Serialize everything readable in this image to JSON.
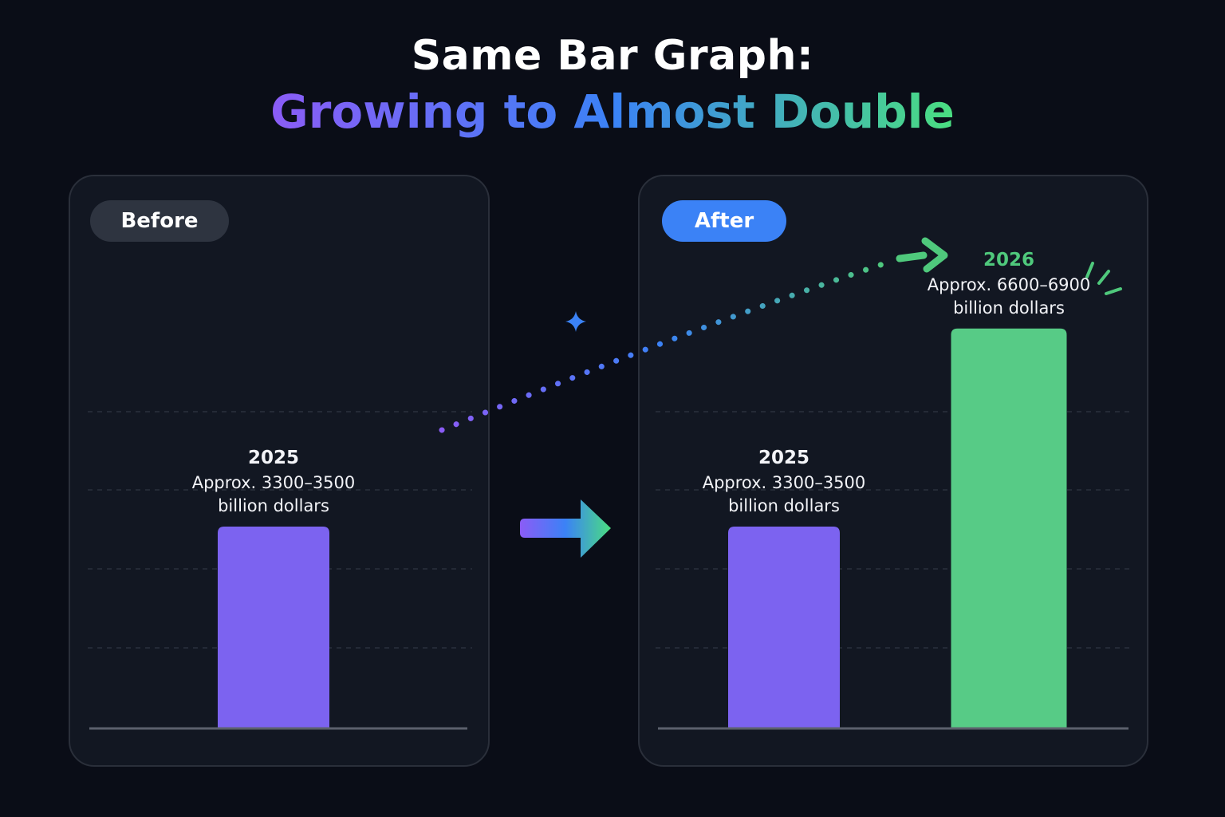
{
  "title": {
    "line1": "Same Bar Graph:",
    "line2": "Growing to Almost Double"
  },
  "colors": {
    "purple_bar": "#7c63f0",
    "green_bar": "#57cb86",
    "after_pill": "#3b82f6",
    "before_pill": "#2e3440"
  },
  "chart_data": [
    {
      "type": "bar",
      "panel": "Before",
      "categories": [
        "2025"
      ],
      "values": [
        3400
      ],
      "labels": [
        {
          "year": "2025",
          "text1": "Approx. 3300–3500",
          "text2": "billion dollars"
        }
      ],
      "ylim": [
        0,
        7000
      ],
      "grid": true
    },
    {
      "type": "bar",
      "panel": "After",
      "categories": [
        "2025",
        "2026"
      ],
      "values": [
        3400,
        6750
      ],
      "labels": [
        {
          "year": "2025",
          "text1": "Approx. 3300–3500",
          "text2": "billion dollars"
        },
        {
          "year": "2026",
          "text1": "Approx. 6600–6900",
          "text2": "billion dollars"
        }
      ],
      "ylim": [
        0,
        7000
      ],
      "grid": true
    }
  ],
  "icons": [
    "sparkle-icon",
    "right-arrow-icon",
    "dotted-trend-arrow-icon",
    "burst-lines-icon"
  ]
}
